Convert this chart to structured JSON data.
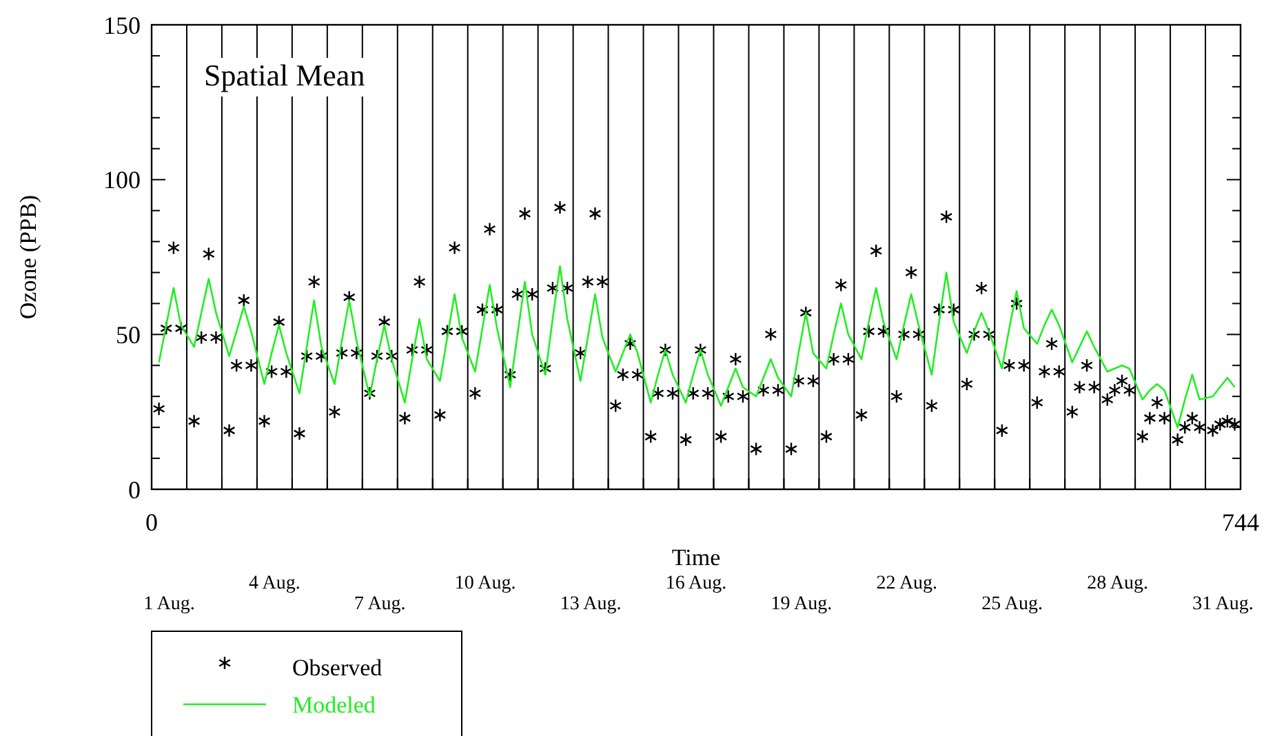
{
  "chart_data": {
    "type": "line",
    "title": "Spatial Mean",
    "xlabel": "Time",
    "ylabel": "Ozone (PPB)",
    "x": [
      5,
      10,
      15,
      20,
      29,
      34,
      39,
      44,
      53,
      58,
      63,
      68,
      77,
      82,
      87,
      92,
      101,
      106,
      111,
      116,
      125,
      130,
      135,
      140,
      149,
      154,
      159,
      164,
      173,
      178,
      183,
      188,
      197,
      202,
      207,
      212,
      221,
      226,
      231,
      236,
      245,
      250,
      255,
      260,
      269,
      274,
      279,
      284,
      293,
      298,
      303,
      308,
      317,
      322,
      327,
      332,
      341,
      346,
      351,
      356,
      365,
      370,
      375,
      380,
      389,
      394,
      399,
      404,
      413,
      418,
      423,
      428,
      437,
      442,
      447,
      452,
      461,
      466,
      471,
      476,
      485,
      490,
      495,
      500,
      509,
      514,
      519,
      524,
      533,
      538,
      543,
      548,
      557,
      562,
      567,
      572,
      581,
      586,
      591,
      596,
      605,
      610,
      615,
      620,
      629,
      634,
      639,
      644,
      653,
      658,
      663,
      668,
      677,
      682,
      687,
      692,
      701,
      706,
      711,
      716,
      725,
      730,
      735,
      740
    ],
    "series": [
      {
        "name": "Observed",
        "type": "scatter",
        "marker": "cross",
        "color": "#000000",
        "values": [
          26,
          52,
          78,
          52,
          22,
          49,
          76,
          49,
          19,
          40,
          61,
          40,
          22,
          38,
          54,
          38,
          18,
          43,
          67,
          43,
          25,
          44,
          62,
          44,
          31,
          43,
          54,
          43,
          23,
          45,
          67,
          45,
          24,
          51,
          78,
          51,
          31,
          58,
          84,
          58,
          37,
          63,
          89,
          63,
          39,
          65,
          91,
          65,
          44,
          67,
          89,
          67,
          27,
          37,
          47,
          37,
          17,
          31,
          45,
          31,
          16,
          31,
          45,
          31,
          17,
          30,
          42,
          30,
          13,
          32,
          50,
          32,
          13,
          35,
          57,
          35,
          17,
          42,
          66,
          42,
          24,
          51,
          77,
          51,
          30,
          50,
          70,
          50,
          27,
          58,
          88,
          58,
          34,
          50,
          65,
          50,
          19,
          40,
          60,
          40,
          28,
          38,
          47,
          38,
          25,
          33,
          40,
          33,
          29,
          32,
          35,
          32,
          17,
          23,
          28,
          23,
          16,
          20,
          23,
          20,
          19,
          21,
          22,
          21
        ]
      },
      {
        "name": "Modeled",
        "type": "line",
        "color": "#22ee22",
        "values": [
          41,
          53,
          65,
          53,
          46,
          57,
          68,
          57,
          43,
          51,
          59,
          51,
          34,
          44,
          53,
          44,
          31,
          46,
          61,
          46,
          34,
          48,
          61,
          48,
          30,
          42,
          53,
          42,
          28,
          42,
          55,
          42,
          35,
          49,
          63,
          49,
          38,
          52,
          66,
          52,
          33,
          50,
          67,
          50,
          37,
          55,
          72,
          55,
          35,
          49,
          63,
          49,
          38,
          44,
          50,
          44,
          28,
          37,
          45,
          37,
          28,
          37,
          45,
          37,
          27,
          33,
          39,
          33,
          30,
          36,
          42,
          36,
          30,
          44,
          57,
          44,
          39,
          50,
          60,
          50,
          42,
          54,
          65,
          54,
          42,
          53,
          63,
          53,
          37,
          54,
          70,
          54,
          44,
          51,
          57,
          51,
          39,
          52,
          64,
          52,
          47,
          53,
          58,
          53,
          41,
          46,
          51,
          46,
          38,
          39,
          40,
          39,
          29,
          32,
          34,
          32,
          20,
          29,
          37,
          29,
          30,
          33,
          36,
          33
        ]
      }
    ],
    "xlim": [
      0,
      744
    ],
    "xticks": [
      0,
      {
        "value": 24,
        "label": null
      },
      {
        "value": 48,
        "label": null
      },
      {
        "value": 72,
        "label": null
      },
      {
        "value": 96,
        "label": null
      },
      {
        "value": 120,
        "label": null
      },
      {
        "value": 144,
        "label": null
      },
      {
        "value": 168,
        "label": null
      },
      {
        "value": 192,
        "label": null
      },
      {
        "value": 216,
        "label": null
      },
      {
        "value": 240,
        "label": null
      },
      {
        "value": 264,
        "label": null
      },
      {
        "value": 288,
        "label": null
      },
      {
        "value": 312,
        "label": null
      },
      {
        "value": 336,
        "label": null
      },
      {
        "value": 360,
        "label": null
      },
      {
        "value": 384,
        "label": null
      },
      {
        "value": 408,
        "label": null
      },
      {
        "value": 432,
        "label": null
      },
      {
        "value": 456,
        "label": null
      },
      {
        "value": 480,
        "label": null
      },
      {
        "value": 504,
        "label": null
      },
      {
        "value": 528,
        "label": null
      },
      {
        "value": 552,
        "label": null
      },
      {
        "value": 576,
        "label": null
      },
      {
        "value": 600,
        "label": null
      },
      {
        "value": 624,
        "label": null
      },
      {
        "value": 648,
        "label": null
      },
      {
        "value": 672,
        "label": null
      },
      {
        "value": 696,
        "label": null
      },
      {
        "value": 720,
        "label": null
      },
      744
    ],
    "annotations": [
      "1 Aug.",
      "4 Aug.",
      "7 Aug.",
      "10 Aug.",
      "13 Aug.",
      "16 Aug.",
      "19 Aug.",
      "22 Aug.",
      "25 Aug.",
      "28 Aug.",
      "31 Aug."
    ],
    "ylim": [
      0,
      150
    ],
    "yticks": [
      0,
      {
        "value": 10,
        "label": null
      },
      {
        "value": 20,
        "label": null
      },
      {
        "value": 30,
        "label": null
      },
      {
        "value": 40,
        "label": null
      },
      50,
      {
        "value": 60,
        "label": null
      },
      {
        "value": 70,
        "label": null
      },
      {
        "value": 80,
        "label": null
      },
      {
        "value": 90,
        "label": null
      },
      100,
      {
        "value": 110,
        "label": null
      },
      {
        "value": 120,
        "label": null
      },
      {
        "value": 130,
        "label": null
      },
      {
        "value": 140,
        "label": null
      },
      150
    ],
    "grid": "x",
    "legend": "bottom left"
  }
}
